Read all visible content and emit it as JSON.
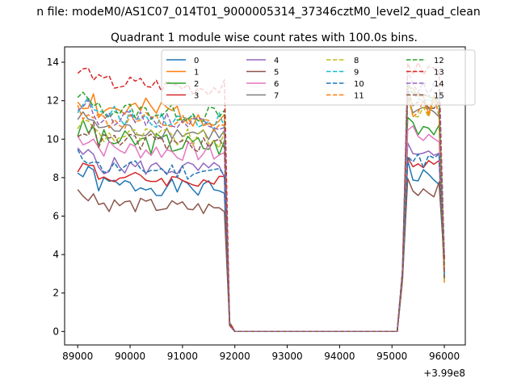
{
  "chart_data": {
    "type": "line",
    "suptitle": "n file: modeM0/AS1C07_014T01_9000005314_37346cztM0_level2_quad_clean",
    "title": "Quadrant 1 module wise count rates with 100.0s bins.",
    "xlabel": "",
    "ylabel": "",
    "x_offset_label": "+3.99e8",
    "xlim": [
      88750,
      96400
    ],
    "ylim": [
      -0.7,
      14.8
    ],
    "x_ticks": [
      89000,
      90000,
      91000,
      92000,
      93000,
      94000,
      95000,
      96000
    ],
    "y_ticks": [
      0,
      2,
      4,
      6,
      8,
      10,
      12,
      14
    ],
    "x_tick_labels": [
      "89000",
      "90000",
      "91000",
      "92000",
      "93000",
      "94000",
      "95000",
      "96000"
    ],
    "y_tick_labels": [
      "0",
      "2",
      "4",
      "6",
      "8",
      "10",
      "12",
      "14"
    ],
    "grid": false,
    "legend": {
      "placement": "upper-center",
      "columns": 4
    },
    "segments": [
      {
        "x_start": 89000,
        "x_end": 91800,
        "step": 100
      },
      {
        "x_start": 91900,
        "x_end": 95100,
        "step": 100
      },
      {
        "x_start": 95200,
        "x_end": 96000,
        "step": 100
      }
    ],
    "series": [
      {
        "name": "0",
        "color": "#1f77b4",
        "dash": "solid",
        "base_on": 7.7,
        "base_post": 8.0,
        "amp": 0.45,
        "seed": 1
      },
      {
        "name": "1",
        "color": "#ff7f0e",
        "dash": "solid",
        "base_on": 11.6,
        "base_post": 12.0,
        "amp": 0.7,
        "seed": 2
      },
      {
        "name": "2",
        "color": "#2ca02c",
        "dash": "solid",
        "base_on": 10.0,
        "base_post": 10.8,
        "amp": 0.6,
        "seed": 3
      },
      {
        "name": "3",
        "color": "#d62728",
        "dash": "solid",
        "base_on": 8.1,
        "base_post": 8.8,
        "amp": 0.35,
        "seed": 4
      },
      {
        "name": "4",
        "color": "#9467bd",
        "dash": "solid",
        "base_on": 8.7,
        "base_post": 9.0,
        "amp": 0.45,
        "seed": 5
      },
      {
        "name": "5",
        "color": "#8c564b",
        "dash": "solid",
        "base_on": 6.7,
        "base_post": 7.4,
        "amp": 0.4,
        "seed": 6
      },
      {
        "name": "6",
        "color": "#e377c2",
        "dash": "solid",
        "base_on": 9.6,
        "base_post": 10.2,
        "amp": 0.5,
        "seed": 7
      },
      {
        "name": "7",
        "color": "#7f7f7f",
        "dash": "solid",
        "base_on": 10.6,
        "base_post": 11.3,
        "amp": 0.4,
        "seed": 8
      },
      {
        "name": "8",
        "color": "#bcbd22",
        "dash": "dashed",
        "base_on": 10.3,
        "base_post": 11.5,
        "amp": 0.5,
        "seed": 9
      },
      {
        "name": "9",
        "color": "#17becf",
        "dash": "dashed",
        "base_on": 11.3,
        "base_post": 12.1,
        "amp": 0.5,
        "seed": 10
      },
      {
        "name": "10",
        "color": "#1f77b4",
        "dash": "dashed",
        "base_on": 8.6,
        "base_post": 8.9,
        "amp": 0.45,
        "seed": 11
      },
      {
        "name": "11",
        "color": "#ff7f0e",
        "dash": "dashed",
        "base_on": 11.0,
        "base_post": 11.7,
        "amp": 0.55,
        "seed": 12
      },
      {
        "name": "12",
        "color": "#2ca02c",
        "dash": "dashed",
        "base_on": 11.6,
        "base_post": 12.3,
        "amp": 0.45,
        "seed": 13
      },
      {
        "name": "13",
        "color": "#d62728",
        "dash": "dashed",
        "base_on": 13.0,
        "base_post": 13.6,
        "amp": 0.45,
        "seed": 14
      },
      {
        "name": "14",
        "color": "#9467bd",
        "dash": "dashed",
        "base_on": 11.2,
        "base_post": 12.6,
        "amp": 0.4,
        "seed": 15
      },
      {
        "name": "15",
        "color": "#8c564b",
        "dash": "dashed",
        "base_on": 10.0,
        "base_post": 11.8,
        "amp": 0.45,
        "seed": 16
      }
    ]
  }
}
